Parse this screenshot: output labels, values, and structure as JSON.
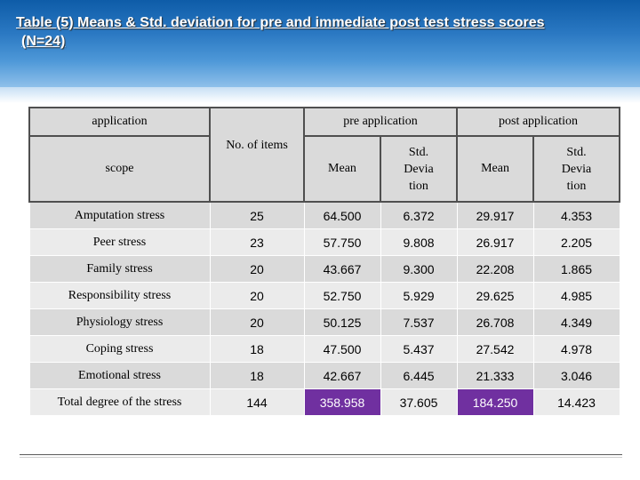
{
  "title": {
    "line1": "Table (5) Means & Std. deviation for pre and immediate post test stress scores",
    "line2": "(N=24)"
  },
  "table": {
    "header": {
      "application": "application",
      "scope": "scope",
      "no_of_items": "No. of items",
      "pre_application": "pre application",
      "post_application": "post application",
      "mean": "Mean",
      "std_line1": "Std.",
      "std_line2": "Devia",
      "std_line3": "tion"
    },
    "rows": [
      {
        "scope": "Amputation stress",
        "items": "25",
        "pre_mean": "64.500",
        "pre_std": "6.372",
        "post_mean": "29.917",
        "post_std": "4.353"
      },
      {
        "scope": "Peer stress",
        "items": "23",
        "pre_mean": "57.750",
        "pre_std": "9.808",
        "post_mean": "26.917",
        "post_std": "2.205"
      },
      {
        "scope": "Family stress",
        "items": "20",
        "pre_mean": "43.667",
        "pre_std": "9.300",
        "post_mean": "22.208",
        "post_std": "1.865"
      },
      {
        "scope": "Responsibility stress",
        "items": "20",
        "pre_mean": "52.750",
        "pre_std": "5.929",
        "post_mean": "29.625",
        "post_std": "4.985"
      },
      {
        "scope": "Physiology stress",
        "items": "20",
        "pre_mean": "50.125",
        "pre_std": "7.537",
        "post_mean": "26.708",
        "post_std": "4.349"
      },
      {
        "scope": "Coping stress",
        "items": "18",
        "pre_mean": "47.500",
        "pre_std": "5.437",
        "post_mean": "27.542",
        "post_std": "4.978"
      },
      {
        "scope": "Emotional stress",
        "items": "18",
        "pre_mean": "42.667",
        "pre_std": "6.445",
        "post_mean": "21.333",
        "post_std": "3.046"
      },
      {
        "scope": "Total degree of the stress",
        "items": "144",
        "pre_mean": "358.958",
        "pre_std": "37.605",
        "post_mean": "184.250",
        "post_std": "14.423"
      }
    ]
  },
  "colors": {
    "header_blue": "#2a78c2",
    "highlight_purple": "#7030a0",
    "cell_gray": "#dadada"
  }
}
